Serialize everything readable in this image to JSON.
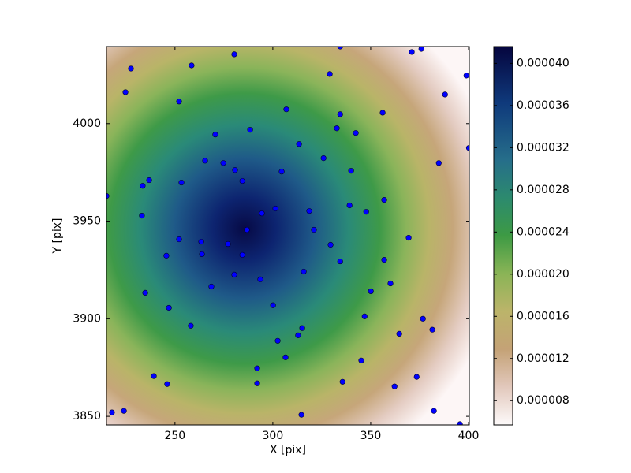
{
  "chart_data": {
    "type": "scatter",
    "xlabel": "X [pix]",
    "ylabel": "Y [pix]",
    "xlim": [
      215,
      400.4
    ],
    "ylim": [
      3845.6,
      4039.5
    ],
    "xticks": [
      250,
      300,
      350,
      400
    ],
    "yticks": [
      3850,
      3900,
      3950,
      4000
    ],
    "series": [
      {
        "color": "#0000ff",
        "x": [
          227.5,
          258.5,
          280.3,
          224.7,
          252.1,
          334.4,
          371.0,
          375.9,
          329.1,
          398.9,
          388.0,
          306.9,
          334.4,
          356.1,
          288.4,
          270.6,
          332.7,
          342.4,
          313.4,
          400.2,
          265.4,
          274.7,
          325.9,
          384.8,
          280.7,
          304.5,
          340.0,
          253.3,
          236.8,
          233.5,
          284.4,
          215.0,
          356.9,
          339.2,
          301.3,
          318.6,
          294.4,
          347.7,
          233.1,
          286.8,
          321.0,
          369.4,
          252.1,
          263.4,
          277.1,
          329.5,
          245.6,
          263.8,
          284.4,
          334.4,
          356.9,
          315.8,
          280.3,
          293.6,
          360.1,
          268.6,
          350.1,
          234.8,
          300.1,
          246.9,
          346.9,
          376.7,
          258.1,
          315.0,
          381.5,
          364.6,
          312.9,
          302.5,
          306.5,
          345.2,
          292.0,
          239.2,
          373.5,
          335.6,
          246.0,
          292.0,
          362.2,
          223.9,
          217.8,
          382.3,
          314.6,
          395.6
        ],
        "values": [
          4028.2,
          4029.8,
          4035.5,
          4016.1,
          4011.3,
          4039.5,
          4036.7,
          4038.3,
          4025.4,
          4024.6,
          4014.9,
          4007.3,
          4004.8,
          4005.6,
          3996.8,
          3994.4,
          3997.6,
          3995.2,
          3989.5,
          3987.5,
          3981.0,
          3979.8,
          3982.3,
          3979.8,
          3976.2,
          3975.4,
          3975.8,
          3969.8,
          3971.0,
          3968.1,
          3970.6,
          3962.9,
          3960.9,
          3958.1,
          3956.5,
          3955.2,
          3954.0,
          3954.8,
          3952.8,
          3945.6,
          3945.6,
          3941.5,
          3940.7,
          3939.5,
          3938.3,
          3937.9,
          3932.3,
          3933.1,
          3932.7,
          3929.4,
          3930.2,
          3924.2,
          3922.6,
          3920.2,
          3918.1,
          3916.5,
          3914.1,
          3913.3,
          3906.9,
          3905.6,
          3901.2,
          3900.0,
          3896.4,
          3895.2,
          3894.4,
          3892.3,
          3891.5,
          3888.7,
          3880.2,
          3878.6,
          3874.6,
          3870.6,
          3870.2,
          3867.7,
          3866.5,
          3866.9,
          3865.3,
          3852.8,
          3852.0,
          3852.8,
          3850.8,
          3846.0
        ]
      }
    ],
    "clim": [
      5.7e-06,
      4.16e-05
    ],
    "cticks": [
      {
        "value": 8e-06,
        "label": "0.000008"
      },
      {
        "value": 1.2e-05,
        "label": "0.000012"
      },
      {
        "value": 1.6e-05,
        "label": "0.000016"
      },
      {
        "value": 2e-05,
        "label": "0.000020"
      },
      {
        "value": 2.4e-05,
        "label": "0.000024"
      },
      {
        "value": 2.8e-05,
        "label": "0.000028"
      },
      {
        "value": 3.2e-05,
        "label": "0.000032"
      },
      {
        "value": 3.6e-05,
        "label": "0.000036"
      },
      {
        "value": 4e-05,
        "label": "0.000040"
      }
    ]
  }
}
